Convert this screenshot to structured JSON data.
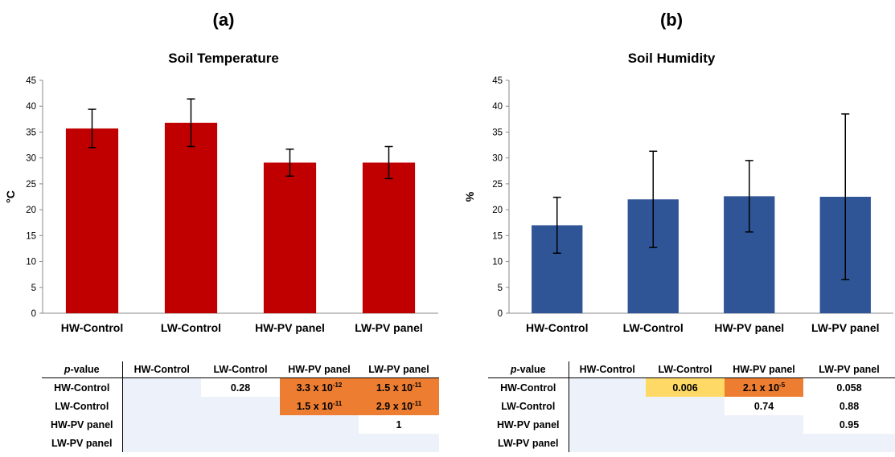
{
  "colors": {
    "red_bar": "#c00000",
    "blue_bar": "#2f5597",
    "strong_sig": "#ed7d31",
    "moderate_sig": "#ffd966",
    "blank_cell": "#edf1fa"
  },
  "panels": [
    {
      "label": "(a)",
      "chart_data": {
        "type": "bar",
        "title": "Soil Temperature",
        "ylabel": "°C",
        "xlabel": "",
        "categories": [
          "HW-Control",
          "LW-Control",
          "HW-PV panel",
          "LW-PV panel"
        ],
        "values": [
          35.7,
          36.8,
          29.1,
          29.1
        ],
        "error_bars": [
          3.7,
          4.6,
          2.6,
          3.1
        ],
        "ylim": [
          0,
          45
        ],
        "ytick_step": 5,
        "yticks": [
          "0",
          "5",
          "10",
          "15",
          "20",
          "25",
          "30",
          "35",
          "40",
          "45"
        ],
        "grid": false,
        "legend": "none"
      },
      "table": {
        "header_prefix": "p",
        "header_suffix": "-value",
        "columns": [
          "HW-Control",
          "LW-Control",
          "HW-PV panel",
          "LW-PV panel"
        ],
        "rows": [
          {
            "label": "HW-Control",
            "cells": [
              {
                "kind": "blank"
              },
              {
                "kind": "value",
                "text": "0.28"
              },
              {
                "kind": "value",
                "text": "3.3 x 10",
                "exp": "-12",
                "sig": "strong"
              },
              {
                "kind": "value",
                "text": "1.5 x 10",
                "exp": "-11",
                "sig": "strong"
              }
            ]
          },
          {
            "label": "LW-Control",
            "cells": [
              {
                "kind": "blank"
              },
              {
                "kind": "blank"
              },
              {
                "kind": "value",
                "text": "1.5 x 10",
                "exp": "-11",
                "sig": "strong"
              },
              {
                "kind": "value",
                "text": "2.9 x 10",
                "exp": "-11",
                "sig": "strong"
              }
            ]
          },
          {
            "label": "HW-PV panel",
            "cells": [
              {
                "kind": "blank"
              },
              {
                "kind": "blank"
              },
              {
                "kind": "blank"
              },
              {
                "kind": "value",
                "text": "1"
              }
            ]
          },
          {
            "label": "LW-PV panel",
            "cells": [
              {
                "kind": "blank"
              },
              {
                "kind": "blank"
              },
              {
                "kind": "blank"
              },
              {
                "kind": "blank"
              }
            ]
          }
        ]
      }
    },
    {
      "label": "(b)",
      "chart_data": {
        "type": "bar",
        "title": "Soil Humidity",
        "ylabel": "%",
        "xlabel": "",
        "categories": [
          "HW-Control",
          "LW-Control",
          "HW-PV panel",
          "LW-PV panel"
        ],
        "values": [
          17.0,
          22.0,
          22.6,
          22.5
        ],
        "error_bars": [
          5.4,
          9.3,
          6.9,
          16.0
        ],
        "ylim": [
          0,
          45
        ],
        "ytick_step": 5,
        "yticks": [
          "0",
          "5",
          "10",
          "15",
          "20",
          "25",
          "30",
          "35",
          "40",
          "45"
        ],
        "grid": false,
        "legend": "none"
      },
      "table": {
        "header_prefix": "p",
        "header_suffix": "-value",
        "columns": [
          "HW-Control",
          "LW-Control",
          "HW-PV panel",
          "LW-PV panel"
        ],
        "rows": [
          {
            "label": "HW-Control",
            "cells": [
              {
                "kind": "blank"
              },
              {
                "kind": "value",
                "text": "0.006",
                "sig": "moderate"
              },
              {
                "kind": "value",
                "text": "2.1 x 10",
                "exp": "-5",
                "sig": "strong"
              },
              {
                "kind": "value",
                "text": "0.058"
              }
            ]
          },
          {
            "label": "LW-Control",
            "cells": [
              {
                "kind": "blank"
              },
              {
                "kind": "blank"
              },
              {
                "kind": "value",
                "text": "0.74"
              },
              {
                "kind": "value",
                "text": "0.88"
              }
            ]
          },
          {
            "label": "HW-PV panel",
            "cells": [
              {
                "kind": "blank"
              },
              {
                "kind": "blank"
              },
              {
                "kind": "blank"
              },
              {
                "kind": "value",
                "text": "0.95"
              }
            ]
          },
          {
            "label": "LW-PV panel",
            "cells": [
              {
                "kind": "blank"
              },
              {
                "kind": "blank"
              },
              {
                "kind": "blank"
              },
              {
                "kind": "blank"
              }
            ]
          }
        ]
      }
    }
  ]
}
